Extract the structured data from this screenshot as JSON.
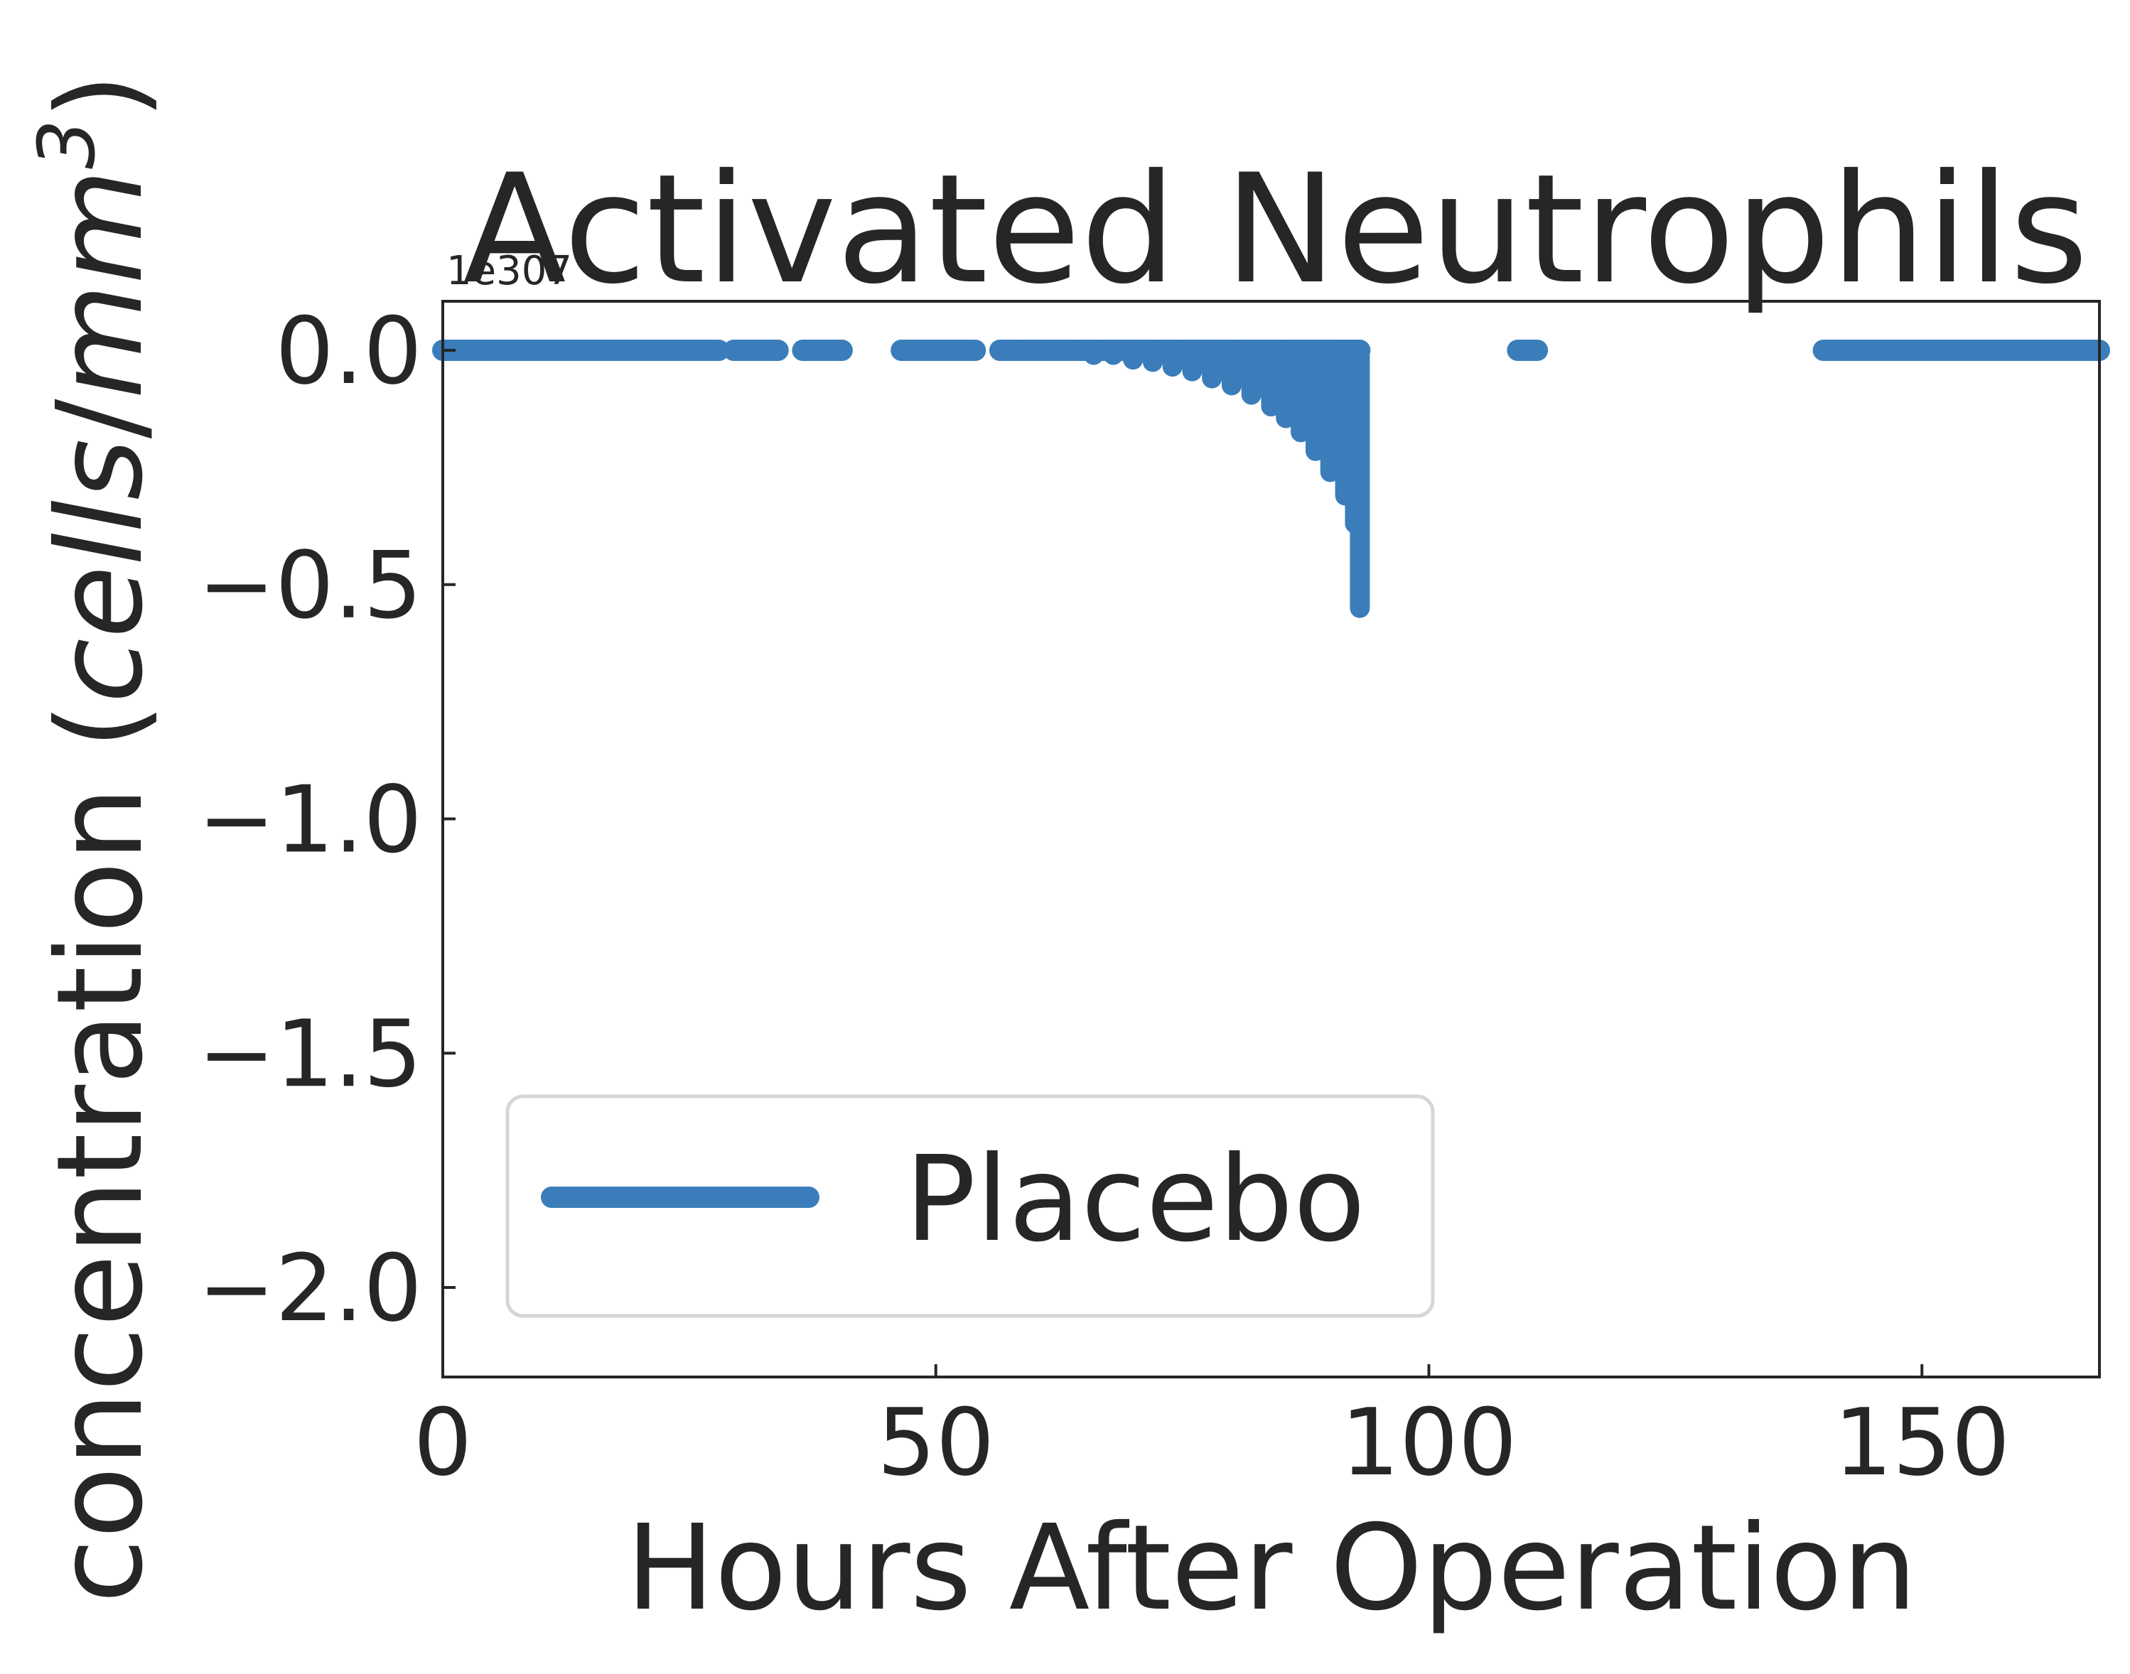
{
  "chart_data": {
    "type": "scatter",
    "title": "Activated Neutrophils",
    "xlabel": "Hours After Operation",
    "ylabel": "concentration (cells/mm³)",
    "offset_text": "1e307",
    "xlim": [
      0,
      168
    ],
    "ylim": [
      -2.2,
      0.1
    ],
    "x_ticks": [
      0,
      50,
      100,
      150
    ],
    "x_tick_labels": [
      "0",
      "50",
      "100",
      "150"
    ],
    "y_ticks": [
      0.0,
      -0.5,
      -1.0,
      -1.5,
      -2.0
    ],
    "y_tick_labels": [
      "0.0",
      "−0.5",
      "−1.0",
      "−1.5",
      "−2.0"
    ],
    "grid": false,
    "legend": {
      "position": "lower-left",
      "entries": [
        "Placebo"
      ]
    },
    "series": [
      {
        "name": "Placebo",
        "color": "#3a7dba",
        "segments_at_zero": [
          [
            0,
            28
          ],
          [
            29.5,
            34
          ],
          [
            36.5,
            40.5
          ],
          [
            46.5,
            54
          ],
          [
            56.5,
            93
          ],
          [
            109,
            111
          ],
          [
            140,
            168
          ]
        ],
        "spike": {
          "x_start": 56.5,
          "x_end": 93,
          "points": [
            [
              58,
              0.0
            ],
            [
              60,
              0.0
            ],
            [
              62,
              0.0
            ],
            [
              64,
              0.0
            ],
            [
              66,
              -0.01
            ],
            [
              68,
              -0.01
            ],
            [
              70,
              -0.02
            ],
            [
              72,
              -0.025
            ],
            [
              74,
              -0.035
            ],
            [
              76,
              -0.045
            ],
            [
              78,
              -0.06
            ],
            [
              80,
              -0.075
            ],
            [
              82,
              -0.095
            ],
            [
              84,
              -0.12
            ],
            [
              85.5,
              -0.145
            ],
            [
              87,
              -0.175
            ],
            [
              88.5,
              -0.215
            ],
            [
              90,
              -0.26
            ],
            [
              91.5,
              -0.31
            ],
            [
              92.5,
              -0.37
            ],
            [
              93,
              -0.55
            ]
          ]
        }
      }
    ]
  }
}
